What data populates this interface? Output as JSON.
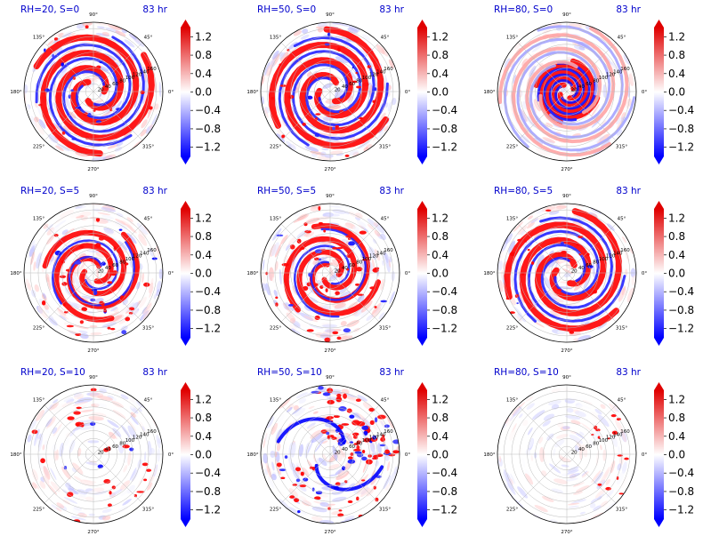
{
  "figure": {
    "colors": {
      "label": "#0000cc",
      "positive": "#e00000",
      "negative": "#0000ff",
      "neutral": "#ffffff",
      "grid": "#bbbbbb",
      "frame": "#000000"
    },
    "angle_labels": [
      "90°",
      "45°",
      "0°",
      "315°",
      "270°",
      "225°",
      "180°",
      "135°"
    ],
    "radial_labels": [
      "20",
      "40",
      "60",
      "80",
      "100",
      "120",
      "140",
      "160"
    ],
    "colorbar": {
      "tick_labels": [
        "1.2",
        "0.8",
        "0.4",
        "0.0",
        "−0.4",
        "−0.8",
        "−1.2"
      ],
      "ticks": [
        1.2,
        0.8,
        0.4,
        0.0,
        -0.4,
        -0.8,
        -1.2
      ],
      "range": [
        -1.4,
        1.4
      ],
      "extend": "both"
    }
  },
  "chart_data": [
    {
      "type": "heatmap",
      "projection": "polar",
      "panel_label": "RH=20, S=0",
      "time_label": "83 hr",
      "pattern": "spiral-strong",
      "activity": 0.85
    },
    {
      "type": "heatmap",
      "projection": "polar",
      "panel_label": "RH=50, S=0",
      "time_label": "83 hr",
      "pattern": "spiral-strong",
      "activity": 0.9
    },
    {
      "type": "heatmap",
      "projection": "polar",
      "panel_label": "RH=80, S=0",
      "time_label": "83 hr",
      "pattern": "spiral-compact",
      "activity": 0.7
    },
    {
      "type": "heatmap",
      "projection": "polar",
      "panel_label": "RH=20, S=5",
      "time_label": "83 hr",
      "pattern": "spiral-cells",
      "activity": 0.8
    },
    {
      "type": "heatmap",
      "projection": "polar",
      "panel_label": "RH=50, S=5",
      "time_label": "83 hr",
      "pattern": "spiral-cells",
      "activity": 0.85
    },
    {
      "type": "heatmap",
      "projection": "polar",
      "panel_label": "RH=80, S=5",
      "time_label": "83 hr",
      "pattern": "spiral-strong",
      "activity": 0.75
    },
    {
      "type": "heatmap",
      "projection": "polar",
      "panel_label": "RH=20, S=10",
      "time_label": "83 hr",
      "pattern": "scattered",
      "activity": 0.45
    },
    {
      "type": "heatmap",
      "projection": "polar",
      "panel_label": "RH=50, S=10",
      "time_label": "83 hr",
      "pattern": "asymmetric-ne",
      "activity": 0.85
    },
    {
      "type": "heatmap",
      "projection": "polar",
      "panel_label": "RH=80, S=10",
      "time_label": "83 hr",
      "pattern": "faint-east",
      "activity": 0.25
    }
  ]
}
